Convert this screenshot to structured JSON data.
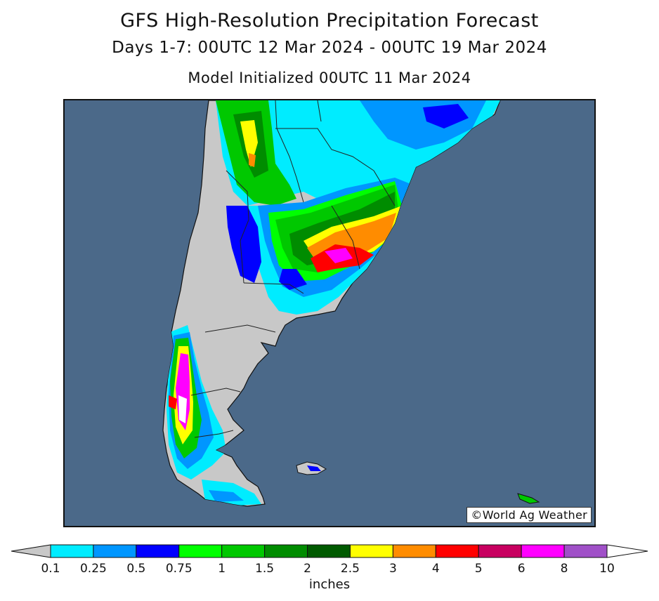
{
  "header": {
    "title": "GFS High-Resolution Precipitation Forecast",
    "subtitle": "Days 1-7: 00UTC 12 Mar 2024 - 00UTC 19 Mar 2024",
    "init_line": "Model Initialized 00UTC 11 Mar 2024"
  },
  "map": {
    "region": "southern South America",
    "ocean_color": "#4b6989",
    "land_color": "#c8c8c8",
    "credit": "©World Ag Weather"
  },
  "legend": {
    "unit": "inches",
    "ticks": [
      "0.1",
      "0.25",
      "0.5",
      "0.75",
      "1",
      "1.5",
      "2",
      "2.5",
      "3",
      "4",
      "5",
      "6",
      "8",
      "10"
    ],
    "colors": [
      "#c8c8c8",
      "#00ecff",
      "#0096ff",
      "#0000ff",
      "#00ff00",
      "#00c800",
      "#008c00",
      "#005a00",
      "#ffff00",
      "#ff8c00",
      "#ff0000",
      "#c80060",
      "#ff00ff",
      "#a050c8",
      "#ffffff"
    ]
  }
}
